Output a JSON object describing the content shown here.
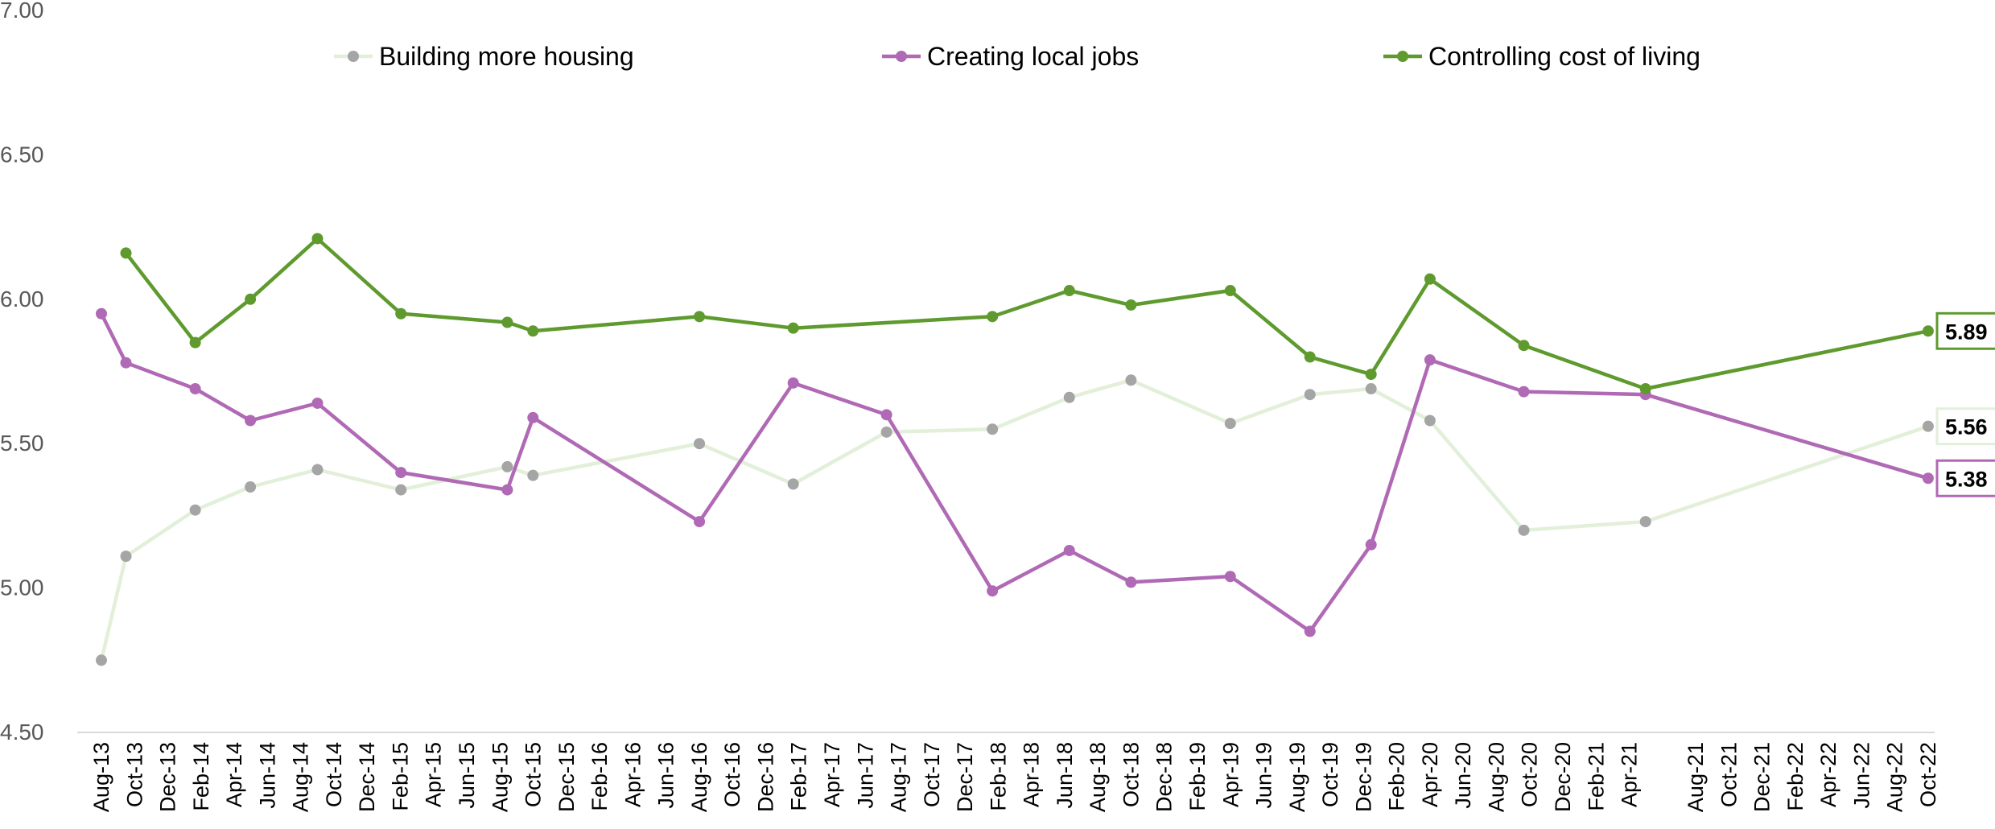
{
  "chart_data": {
    "type": "line",
    "title": "",
    "xlabel": "",
    "ylabel": "",
    "ylim": [
      4.5,
      7.0
    ],
    "y_ticks": [
      "4.50",
      "5.00",
      "5.50",
      "6.00",
      "6.50",
      "7.00"
    ],
    "grid": false,
    "legend_position": "top",
    "x_tick_labels": [
      "Aug-13",
      "Oct-13",
      "Dec-13",
      "Feb-14",
      "Apr-14",
      "Jun-14",
      "Aug-14",
      "Oct-14",
      "Dec-14",
      "Feb-15",
      "Apr-15",
      "Jun-15",
      "Aug-15",
      "Oct-15",
      "Dec-15",
      "Feb-16",
      "Apr-16",
      "Jun-16",
      "Aug-16",
      "Oct-16",
      "Dec-16",
      "Feb-17",
      "Apr-17",
      "Jun-17",
      "Aug-17",
      "Oct-17",
      "Dec-17",
      "Feb-18",
      "Apr-18",
      "Jun-18",
      "Aug-18",
      "Oct-18",
      "Dec-18",
      "Feb-19",
      "Apr-19",
      "Jun-19",
      "Aug-19",
      "Oct-19",
      "Dec-19",
      "Feb-20",
      "Apr-20",
      "Jun-20",
      "Aug-20",
      "Oct-20",
      "Dec-20",
      "Feb-21",
      "Apr-21",
      "Aug-21",
      "Oct-21",
      "Dec-21",
      "Feb-22",
      "Apr-22",
      "Jun-22",
      "Aug-22",
      "Oct-22"
    ],
    "series": [
      {
        "name": "Building more housing",
        "color": "#e2efd9",
        "marker_color": "#a5a5a5",
        "end_label": "5.56",
        "points": [
          {
            "x": "2013-08-01",
            "y": 4.75
          },
          {
            "x": "2013-09-15",
            "y": 5.11
          },
          {
            "x": "2014-01-20",
            "y": 5.27
          },
          {
            "x": "2014-05-01",
            "y": 5.35
          },
          {
            "x": "2014-09-01",
            "y": 5.41
          },
          {
            "x": "2015-02-01",
            "y": 5.34
          },
          {
            "x": "2015-08-15",
            "y": 5.42
          },
          {
            "x": "2015-10-01",
            "y": 5.39
          },
          {
            "x": "2016-08-01",
            "y": 5.5
          },
          {
            "x": "2017-01-20",
            "y": 5.36
          },
          {
            "x": "2017-07-10",
            "y": 5.54
          },
          {
            "x": "2018-01-20",
            "y": 5.55
          },
          {
            "x": "2018-06-10",
            "y": 5.66
          },
          {
            "x": "2018-10-01",
            "y": 5.72
          },
          {
            "x": "2019-04-01",
            "y": 5.57
          },
          {
            "x": "2019-08-25",
            "y": 5.67
          },
          {
            "x": "2019-12-15",
            "y": 5.69
          },
          {
            "x": "2020-04-01",
            "y": 5.58
          },
          {
            "x": "2020-09-20",
            "y": 5.2
          },
          {
            "x": "2021-05-01",
            "y": 5.23
          },
          {
            "x": "2022-10-01",
            "y": 5.56
          }
        ]
      },
      {
        "name": "Creating local jobs",
        "color": "#b069b5",
        "marker_color": "#b069b5",
        "end_label": "5.38",
        "points": [
          {
            "x": "2013-08-01",
            "y": 5.95
          },
          {
            "x": "2013-09-15",
            "y": 5.78
          },
          {
            "x": "2014-01-20",
            "y": 5.69
          },
          {
            "x": "2014-05-01",
            "y": 5.58
          },
          {
            "x": "2014-09-01",
            "y": 5.64
          },
          {
            "x": "2015-02-01",
            "y": 5.4
          },
          {
            "x": "2015-08-15",
            "y": 5.34
          },
          {
            "x": "2015-10-01",
            "y": 5.59
          },
          {
            "x": "2016-08-01",
            "y": 5.23
          },
          {
            "x": "2017-01-20",
            "y": 5.71
          },
          {
            "x": "2017-07-10",
            "y": 5.6
          },
          {
            "x": "2018-01-20",
            "y": 4.99
          },
          {
            "x": "2018-06-10",
            "y": 5.13
          },
          {
            "x": "2018-10-01",
            "y": 5.02
          },
          {
            "x": "2019-04-01",
            "y": 5.04
          },
          {
            "x": "2019-08-25",
            "y": 4.85
          },
          {
            "x": "2019-12-15",
            "y": 5.15
          },
          {
            "x": "2020-04-01",
            "y": 5.79
          },
          {
            "x": "2020-09-20",
            "y": 5.68
          },
          {
            "x": "2021-05-01",
            "y": 5.67
          },
          {
            "x": "2022-10-01",
            "y": 5.38
          }
        ]
      },
      {
        "name": "Controlling cost of living",
        "color": "#5e9a2e",
        "marker_color": "#5e9a2e",
        "end_label": "5.89",
        "points": [
          {
            "x": "2013-09-15",
            "y": 6.16
          },
          {
            "x": "2014-01-20",
            "y": 5.85
          },
          {
            "x": "2014-05-01",
            "y": 6.0
          },
          {
            "x": "2014-09-01",
            "y": 6.21
          },
          {
            "x": "2015-02-01",
            "y": 5.95
          },
          {
            "x": "2015-08-15",
            "y": 5.92
          },
          {
            "x": "2015-10-01",
            "y": 5.89
          },
          {
            "x": "2016-08-01",
            "y": 5.94
          },
          {
            "x": "2017-01-20",
            "y": 5.9
          },
          {
            "x": "2018-01-20",
            "y": 5.94
          },
          {
            "x": "2018-06-10",
            "y": 6.03
          },
          {
            "x": "2018-10-01",
            "y": 5.98
          },
          {
            "x": "2019-04-01",
            "y": 6.03
          },
          {
            "x": "2019-08-25",
            "y": 5.8
          },
          {
            "x": "2019-12-15",
            "y": 5.74
          },
          {
            "x": "2020-04-01",
            "y": 6.07
          },
          {
            "x": "2020-09-20",
            "y": 5.84
          },
          {
            "x": "2021-05-01",
            "y": 5.69
          },
          {
            "x": "2022-10-01",
            "y": 5.89
          }
        ]
      }
    ]
  }
}
